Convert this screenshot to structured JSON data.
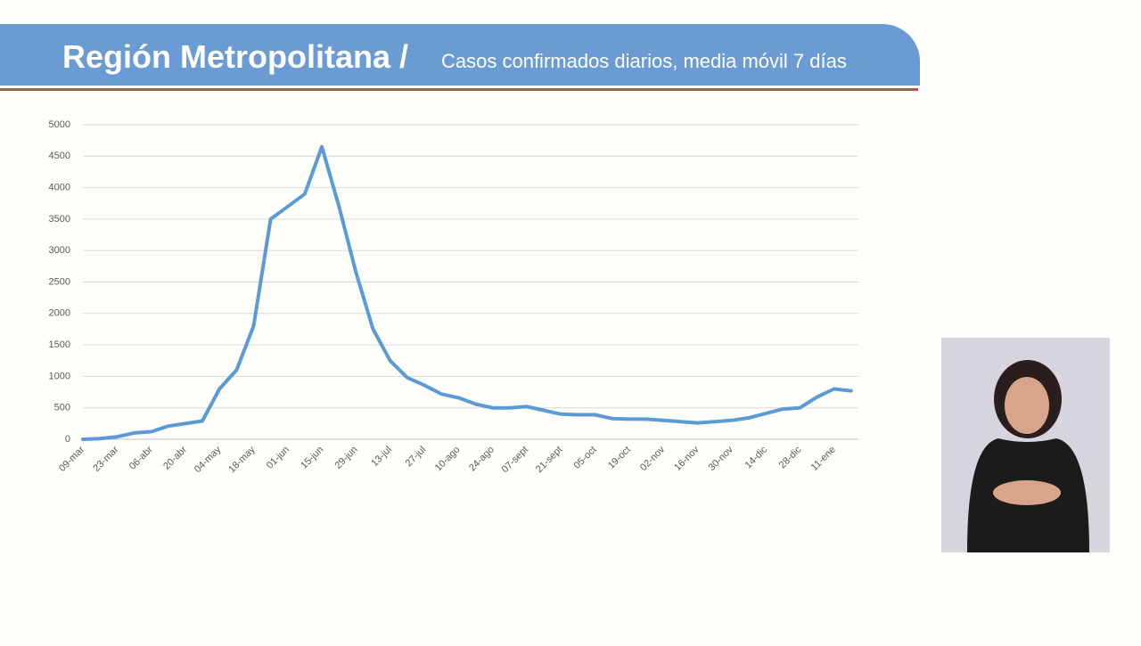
{
  "chart_data": {
    "type": "line",
    "title": "Región Metropolitana /",
    "subtitle": "Casos confirmados diarios, media móvil 7 días",
    "categories": [
      "09-mar",
      null,
      "23-mar",
      null,
      "06-abr",
      null,
      "20-abr",
      null,
      "04-may",
      null,
      "18-may",
      null,
      "01-jun",
      null,
      "15-jun",
      null,
      "29-jun",
      null,
      "13-jul",
      null,
      "27-jul",
      null,
      "10-ago",
      null,
      "24-ago",
      null,
      "07-sept",
      null,
      "21-sept",
      null,
      "05-oct",
      null,
      "19-oct",
      null,
      "02-nov",
      null,
      "16-nov",
      null,
      "30-nov",
      null,
      "14-dic",
      null,
      "28-dic",
      null,
      "11-ene",
      null
    ],
    "values": [
      0,
      10,
      40,
      100,
      120,
      210,
      250,
      290,
      800,
      1100,
      1800,
      3500,
      3700,
      3900,
      4650,
      3700,
      2650,
      1750,
      1250,
      980,
      860,
      720,
      660,
      560,
      500,
      500,
      520,
      460,
      400,
      390,
      390,
      330,
      320,
      320,
      300,
      280,
      260,
      280,
      300,
      340,
      410,
      480,
      500,
      670,
      800,
      770
    ],
    "color": "#5b9bd5",
    "ylim": [
      0,
      5000
    ],
    "yticks": [
      0,
      500,
      1000,
      1500,
      2000,
      2500,
      3000,
      3500,
      4000,
      4500,
      5000
    ],
    "grid": true
  }
}
